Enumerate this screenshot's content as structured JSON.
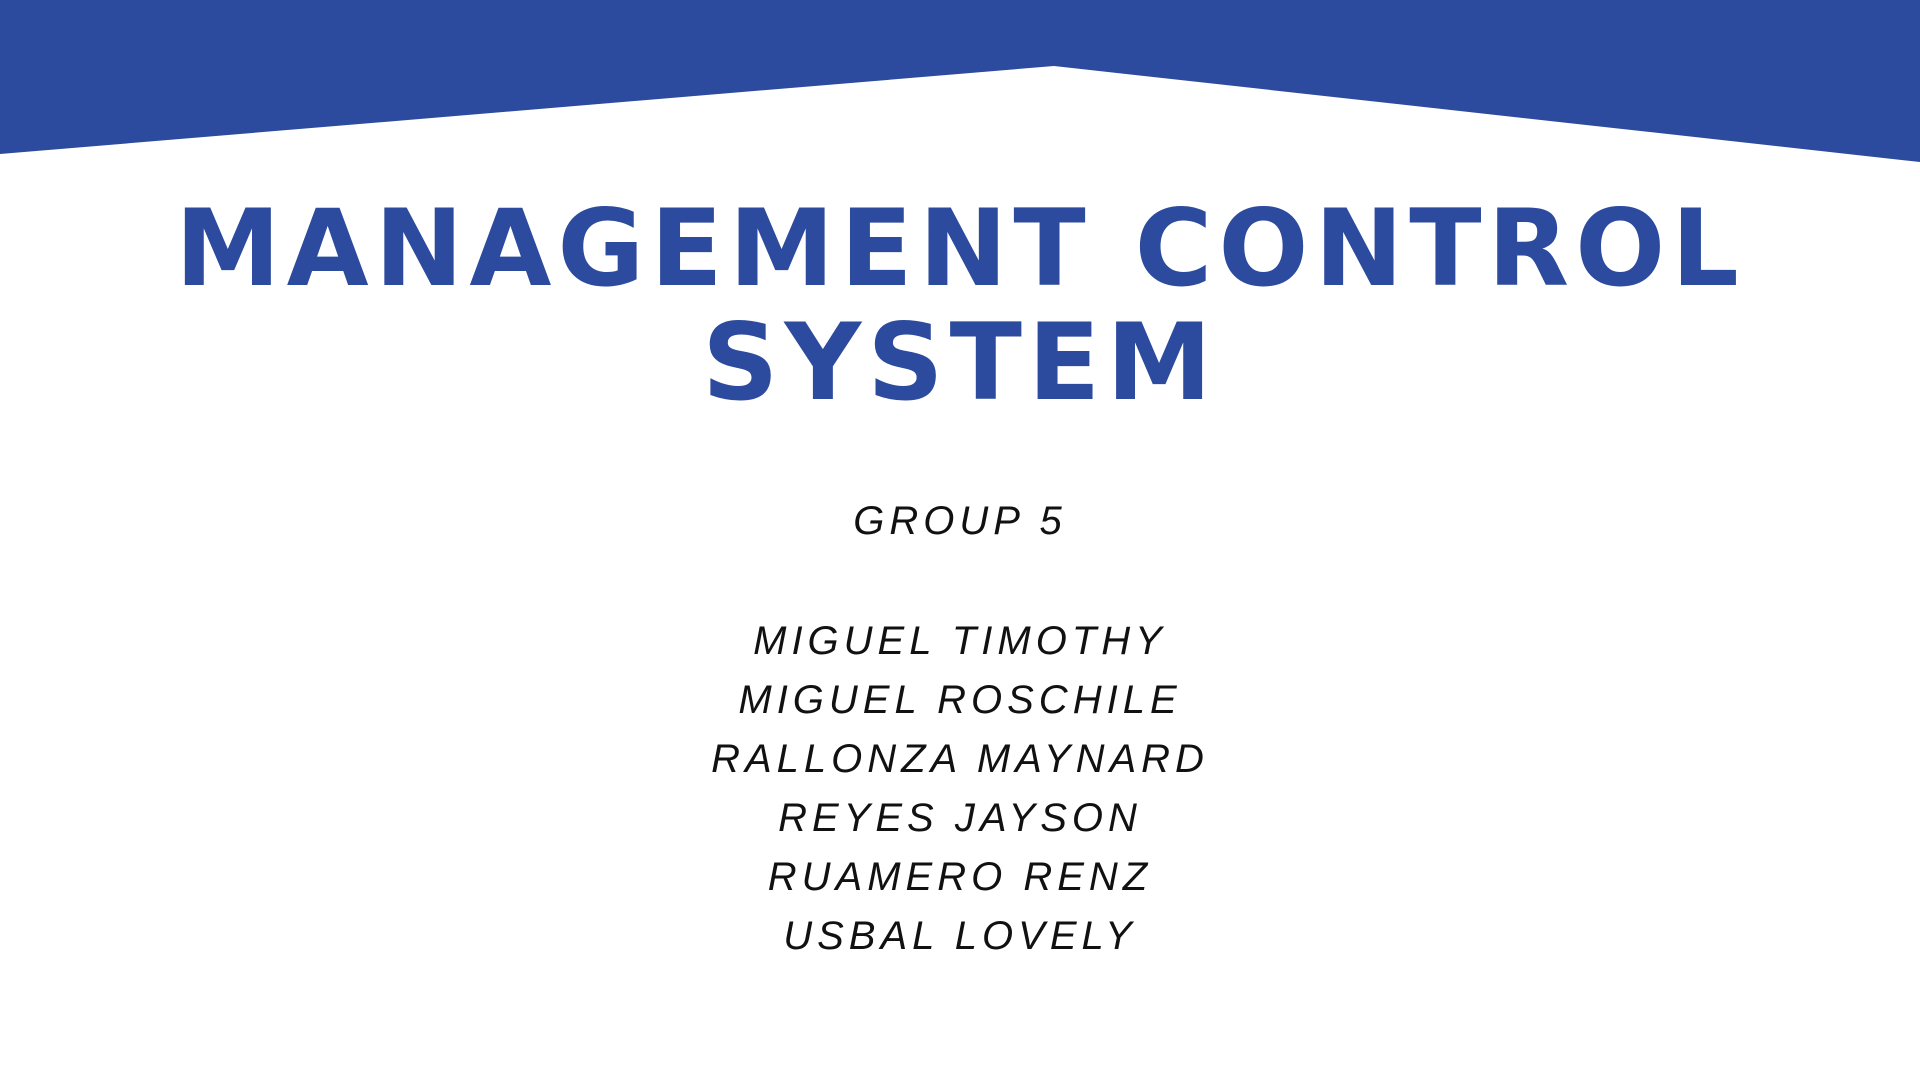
{
  "slide": {
    "title_lines": [
      "MANAGEMENT CONTROL",
      "SYSTEM"
    ],
    "group": "GROUP 5",
    "members": [
      "MIGUEL TIMOTHY",
      "MIGUEL ROSCHILE",
      "RALLONZA MAYNARD",
      "REYES JAYSON",
      "RUAMERO RENZ",
      "USBAL LOVELY"
    ]
  },
  "colors": {
    "accent": "#2C4A9E",
    "text": "#111111",
    "background": "#FFFFFF"
  }
}
